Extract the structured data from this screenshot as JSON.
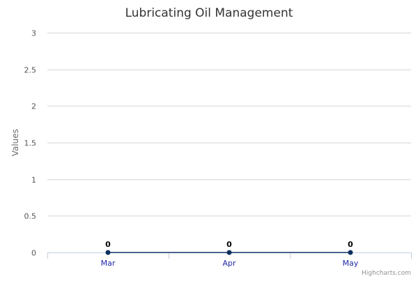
{
  "chart_data": {
    "type": "line",
    "title": "Lubricating Oil Management",
    "ylabel": "Values",
    "xlabel": "",
    "categories": [
      "Mar",
      "Apr",
      "May"
    ],
    "series": [
      {
        "values": [
          0,
          0,
          0
        ],
        "data_labels": [
          "0",
          "0",
          "0"
        ]
      }
    ],
    "ylim": [
      0,
      3
    ],
    "yticks": [
      "0",
      "0.5",
      "1",
      "1.5",
      "2",
      "2.5",
      "3"
    ],
    "grid": true,
    "legend": "none"
  },
  "credits": "Highcharts.com",
  "colors": {
    "series_line": "#1a3a6b",
    "series_marker": "#0d2f5e",
    "gridline": "#d8d8d8",
    "x_tick_label": "#1f28a8"
  }
}
